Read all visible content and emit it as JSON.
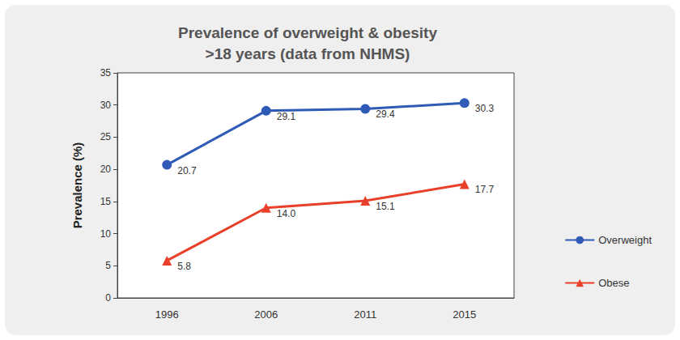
{
  "chart_data": {
    "type": "line",
    "title": "Prevalence of overweight & obesity\n>18 years (data from NHMS)",
    "y_label": "Prevalence (%)",
    "categories": [
      "1996",
      "2006",
      "2011",
      "2015"
    ],
    "series": [
      {
        "name": "Overweight",
        "color": "#2f5bb7",
        "marker": "circle",
        "values": [
          20.7,
          29.1,
          29.4,
          30.3
        ]
      },
      {
        "name": "Obese",
        "color": "#e8402a",
        "marker": "triangle",
        "values": [
          5.8,
          14.0,
          15.1,
          17.7
        ],
        "value_labels": [
          "5.8",
          "14.0",
          "15.1",
          "17.7"
        ]
      }
    ],
    "ylim": [
      0,
      35
    ],
    "yticks": [
      0,
      5,
      10,
      15,
      20,
      25,
      30,
      35
    ],
    "grid": false,
    "legend": "right",
    "data_labels": true
  }
}
